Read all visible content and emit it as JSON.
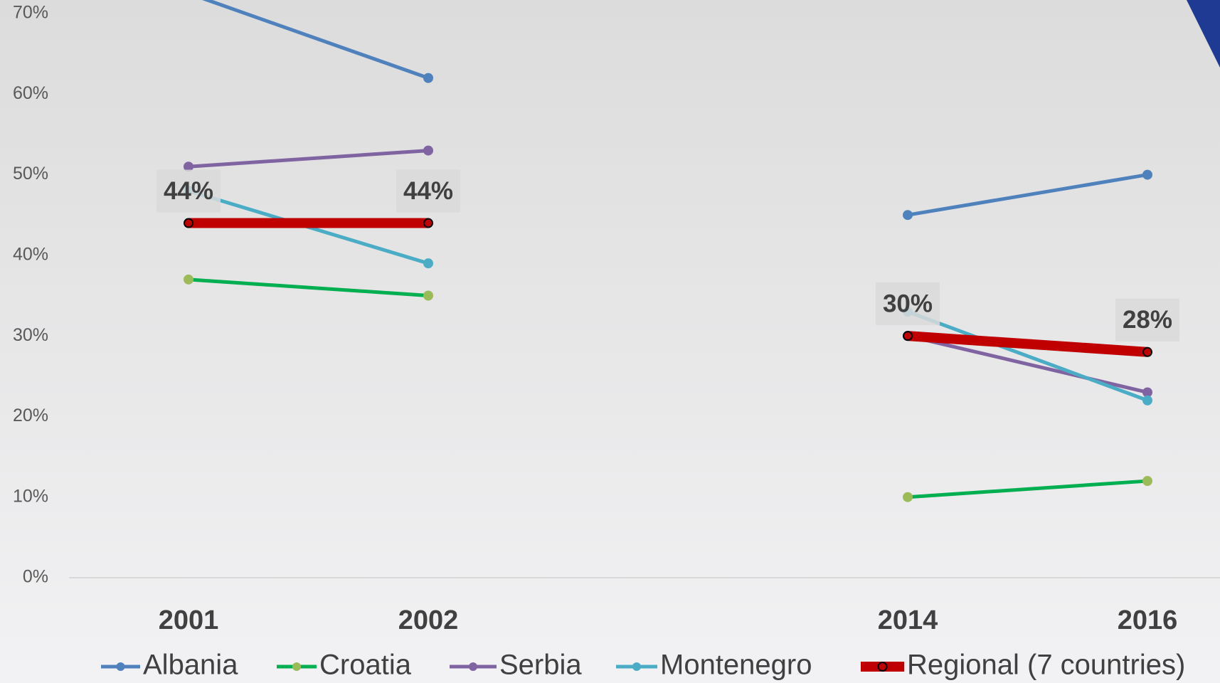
{
  "chart_data": {
    "type": "line",
    "categories": [
      "2001",
      "2002",
      null,
      "2014",
      "2016"
    ],
    "series": [
      {
        "name": "Albania",
        "color": "#4f81bd",
        "marker_color": "#4f81bd",
        "values": [
          72.5,
          62,
          null,
          45,
          50
        ]
      },
      {
        "name": "Croatia",
        "color": "#00b050",
        "marker_color": "#9bbb59",
        "values": [
          37,
          35,
          null,
          10,
          12
        ]
      },
      {
        "name": "Serbia",
        "color": "#8064a2",
        "marker_color": "#8064a2",
        "values": [
          51,
          53,
          null,
          30,
          23
        ]
      },
      {
        "name": "Montenegro",
        "color": "#4bacc6",
        "marker_color": "#4bacc6",
        "values": [
          48,
          39,
          null,
          33,
          22
        ]
      },
      {
        "name": "Regional (7 countries)",
        "color": "#c00000",
        "marker_color": "#c00000",
        "values": [
          44,
          44,
          null,
          30,
          28
        ],
        "value_labels": [
          "44%",
          "44%",
          null,
          "30%",
          "28%"
        ]
      }
    ],
    "ylim": [
      0,
      70
    ],
    "yticks": [
      {
        "value": 0,
        "label": "0%"
      },
      {
        "value": 10,
        "label": "10%"
      },
      {
        "value": 20,
        "label": "20%"
      },
      {
        "value": 30,
        "label": "30%"
      },
      {
        "value": 40,
        "label": "40%"
      },
      {
        "value": 50,
        "label": "50%"
      },
      {
        "value": 60,
        "label": "60%"
      },
      {
        "value": 70,
        "label": "70%"
      }
    ],
    "grid": false
  }
}
